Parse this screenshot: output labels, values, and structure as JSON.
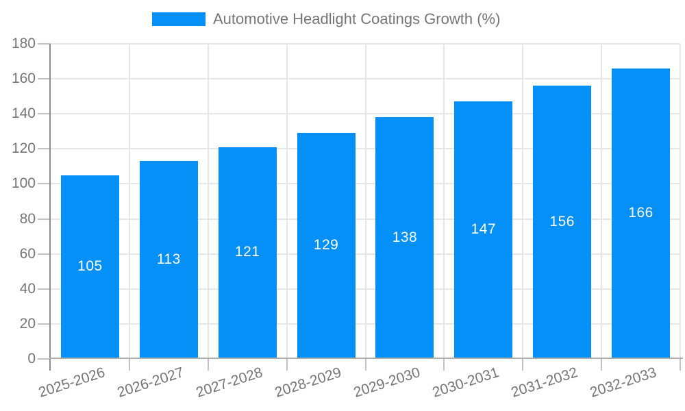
{
  "legend": {
    "label": "Automotive Headlight Coatings Growth (%)"
  },
  "chart_data": {
    "type": "bar",
    "title": "Automotive Headlight Coatings Growth (%)",
    "categories": [
      "2025-2026",
      "2026-2027",
      "2027-2028",
      "2028-2029",
      "2029-2030",
      "2030-2031",
      "2031-2032",
      "2032-2033"
    ],
    "values": [
      105,
      113,
      121,
      129,
      138,
      147,
      156,
      166
    ],
    "xlabel": "",
    "ylabel": "",
    "ylim": [
      0,
      180
    ],
    "ytick_step": 20,
    "yticks": [
      0,
      20,
      40,
      60,
      80,
      100,
      120,
      140,
      160,
      180
    ],
    "grid": true,
    "legend_position": "top-center",
    "colors": {
      "bar": "#0590f8",
      "value_label": "#ffffff",
      "axis_text": "#757575",
      "gridline": "#e6e6e6",
      "axis_line": "#8c8c8c",
      "bottom_line": "#adadad",
      "tick": "#c2c2c2",
      "background": "#ffffff"
    }
  }
}
